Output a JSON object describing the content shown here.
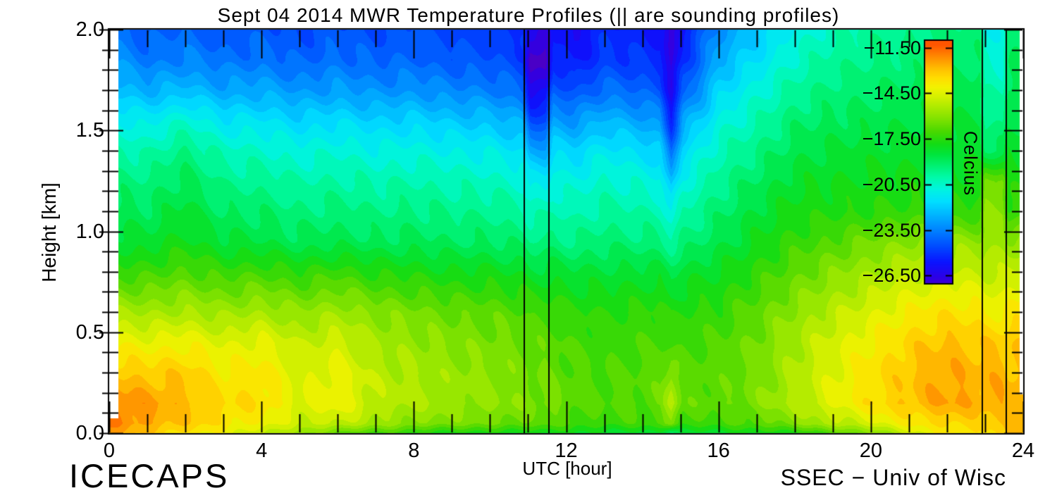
{
  "title": "Sept 04 2014 MWR Temperature Profiles (|| are sounding profiles)",
  "footer_left": "ICECAPS",
  "footer_right": "SSEC − Univ of Wisc",
  "chart_data": {
    "type": "heatmap",
    "title": "Sept 04 2014 MWR Temperature Profiles (|| are sounding profiles)",
    "xlabel": "UTC [hour]",
    "ylabel": "Height [km]",
    "xlim": [
      0,
      24
    ],
    "ylim": [
      0.0,
      2.0
    ],
    "x_major_ticks": [
      0,
      4,
      8,
      12,
      16,
      20,
      24
    ],
    "x_tick_labels": [
      "0",
      "4",
      "8",
      "12",
      "16",
      "20",
      "24"
    ],
    "x_minor_step": 1,
    "y_major_ticks": [
      2.0,
      1.5,
      1.0,
      0.5,
      0.0
    ],
    "y_tick_labels": [
      "2.0",
      "1.5",
      "1.0",
      "0.5",
      "0.0"
    ],
    "y_minor_step": 0.1,
    "contour_interval_c": 0.5,
    "sounding_lines_utc": [
      10.9,
      11.55,
      22.93,
      23.56
    ],
    "colorbar": {
      "title": "Celcius",
      "ticks": [
        -11.5,
        -14.5,
        -17.5,
        -20.5,
        -23.5,
        -26.5
      ],
      "tick_labels": [
        "−11.50",
        "−14.50",
        "−17.50",
        "−20.50",
        "−23.50",
        "−26.50"
      ],
      "bar_max": -11.05,
      "bar_min": -27.0
    },
    "colormap_stops": [
      [
        -27.6,
        "#5A00B4"
      ],
      [
        -26.6,
        "#2D00E6"
      ],
      [
        -25.6,
        "#0A14FF"
      ],
      [
        -24.6,
        "#0049FF"
      ],
      [
        -23.6,
        "#007DFF"
      ],
      [
        -22.6,
        "#00AFFF"
      ],
      [
        -21.6,
        "#00DFFF"
      ],
      [
        -20.8,
        "#00F4E0"
      ],
      [
        -20.0,
        "#00FAA8"
      ],
      [
        -19.2,
        "#00F06E"
      ],
      [
        -18.5,
        "#00E53C"
      ],
      [
        -17.8,
        "#14DC14"
      ],
      [
        -17.0,
        "#49D800"
      ],
      [
        -16.2,
        "#7EE200"
      ],
      [
        -15.4,
        "#ACEA00"
      ],
      [
        -14.7,
        "#D5F000"
      ],
      [
        -14.1,
        "#F2F200"
      ],
      [
        -13.5,
        "#FFDE00"
      ],
      [
        -12.9,
        "#FFC100"
      ],
      [
        -12.3,
        "#FF9A00"
      ],
      [
        -11.8,
        "#FF7800"
      ],
      [
        -11.3,
        "#FF5500"
      ]
    ],
    "times": [
      0,
      1,
      2,
      3,
      4,
      5,
      6,
      7,
      8,
      9,
      10,
      10.85,
      11.05,
      11.45,
      11.65,
      12.2,
      13,
      14,
      14.45,
      14.75,
      15.05,
      16,
      17,
      18,
      19,
      20,
      21,
      22,
      22.85,
      23.0,
      23.45,
      23.6,
      24
    ],
    "heights": [
      2.0,
      1.85,
      1.7,
      1.55,
      1.4,
      1.25,
      1.1,
      0.95,
      0.8,
      0.6,
      0.45,
      0.3,
      0.15,
      0.05,
      0.0
    ],
    "grid_celsius": [
      [
        -23.6,
        -24.3,
        -24.0,
        -24.4,
        -24.2,
        -24.6,
        -24.3,
        -24.6,
        -24.4,
        -24.7,
        -24.8,
        -25.1,
        -26.4,
        -26.4,
        -25.4,
        -26.1,
        -25.2,
        -25.4,
        -25.6,
        -27.1,
        -25.6,
        -23.2,
        -22.1,
        -20.9,
        -20.2,
        -19.8,
        -19.6,
        -19.4,
        -19.3,
        -20.9,
        -20.9,
        -19.3,
        -19.1
      ],
      [
        -23.0,
        -23.7,
        -23.4,
        -23.8,
        -23.7,
        -24.1,
        -23.8,
        -24.1,
        -24.0,
        -24.3,
        -24.4,
        -24.8,
        -27.4,
        -27.4,
        -25.1,
        -25.7,
        -24.8,
        -25.0,
        -25.2,
        -26.9,
        -25.2,
        -22.6,
        -21.5,
        -20.4,
        -19.8,
        -19.5,
        -19.3,
        -19.2,
        -19.1,
        -20.6,
        -20.6,
        -19.1,
        -18.9
      ],
      [
        -22.1,
        -22.6,
        -22.3,
        -22.8,
        -22.7,
        -23.1,
        -22.9,
        -23.2,
        -23.1,
        -23.4,
        -23.5,
        -24.0,
        -26.2,
        -26.2,
        -24.2,
        -24.5,
        -23.8,
        -24.1,
        -24.4,
        -26.3,
        -24.3,
        -21.8,
        -20.7,
        -19.8,
        -19.3,
        -19.1,
        -18.9,
        -18.8,
        -18.8,
        -20.1,
        -20.1,
        -18.8,
        -18.7
      ],
      [
        -20.9,
        -21.2,
        -20.5,
        -21.4,
        -21.4,
        -21.8,
        -21.6,
        -21.9,
        -21.8,
        -22.1,
        -22.2,
        -22.7,
        -24.6,
        -24.6,
        -22.9,
        -23.1,
        -22.4,
        -22.8,
        -23.1,
        -25.4,
        -22.9,
        -20.9,
        -20.1,
        -19.2,
        -18.9,
        -18.7,
        -18.6,
        -18.5,
        -18.5,
        -19.6,
        -19.6,
        -18.5,
        -18.4
      ],
      [
        -20.0,
        -20.1,
        -19.4,
        -20.3,
        -20.4,
        -20.8,
        -20.6,
        -20.9,
        -20.8,
        -21.0,
        -21.1,
        -21.5,
        -22.7,
        -22.7,
        -21.6,
        -21.8,
        -21.2,
        -21.6,
        -21.9,
        -24.1,
        -21.7,
        -20.2,
        -19.5,
        -18.7,
        -18.4,
        -18.3,
        -18.2,
        -18.1,
        -18.2,
        -18.9,
        -18.9,
        -18.2,
        -18.1
      ],
      [
        -19.3,
        -19.4,
        -18.8,
        -19.6,
        -19.7,
        -20.0,
        -19.9,
        -20.1,
        -20.0,
        -20.2,
        -20.3,
        -20.6,
        -21.2,
        -21.2,
        -20.7,
        -20.9,
        -20.4,
        -20.7,
        -20.9,
        -22.4,
        -20.8,
        -19.7,
        -18.9,
        -18.2,
        -18.0,
        -17.9,
        -17.8,
        -17.7,
        -17.8,
        -16.4,
        -16.4,
        -17.8,
        -17.7
      ],
      [
        -18.8,
        -18.9,
        -18.3,
        -19.0,
        -19.1,
        -19.4,
        -19.3,
        -19.5,
        -19.4,
        -19.6,
        -19.6,
        -19.9,
        -20.2,
        -20.2,
        -20.0,
        -20.2,
        -19.8,
        -20.0,
        -20.1,
        -20.9,
        -20.0,
        -19.2,
        -18.4,
        -17.8,
        -17.6,
        -17.5,
        -17.4,
        -17.3,
        -17.4,
        -15.9,
        -15.9,
        -17.4,
        -17.3
      ],
      [
        -18.2,
        -18.3,
        -17.8,
        -18.4,
        -18.5,
        -18.8,
        -18.7,
        -18.9,
        -18.8,
        -19.0,
        -19.0,
        -19.2,
        -19.4,
        -19.4,
        -19.3,
        -19.5,
        -19.2,
        -19.3,
        -19.4,
        -19.8,
        -19.4,
        -18.7,
        -18.0,
        -17.3,
        -16.9,
        -16.4,
        -16.0,
        -15.8,
        -15.9,
        -15.7,
        -15.7,
        -15.9,
        -15.7
      ],
      [
        -17.4,
        -17.2,
        -16.9,
        -17.3,
        -17.1,
        -17.5,
        -17.2,
        -17.6,
        -17.7,
        -17.9,
        -17.9,
        -18.1,
        -18.3,
        -18.3,
        -18.2,
        -18.4,
        -18.4,
        -18.3,
        -18.3,
        -18.7,
        -18.3,
        -18.0,
        -17.4,
        -16.7,
        -16.1,
        -15.6,
        -15.1,
        -14.9,
        -15.0,
        -15.1,
        -15.1,
        -15.0,
        -14.8
      ],
      [
        -15.4,
        -15.6,
        -15.4,
        -15.7,
        -15.5,
        -15.9,
        -15.6,
        -16.1,
        -16.3,
        -16.6,
        -16.7,
        -16.9,
        -17.1,
        -17.1,
        -17.2,
        -17.4,
        -17.5,
        -17.4,
        -17.3,
        -17.7,
        -17.5,
        -17.3,
        -16.7,
        -15.9,
        -15.2,
        -14.6,
        -14.0,
        -13.6,
        -13.8,
        -14.0,
        -14.0,
        -13.9,
        -13.7
      ],
      [
        -14.1,
        -14.3,
        -14.1,
        -14.6,
        -14.3,
        -15.1,
        -14.7,
        -15.5,
        -15.8,
        -16.1,
        -16.3,
        -16.5,
        -16.7,
        -16.7,
        -16.8,
        -17.1,
        -17.2,
        -17.1,
        -17.0,
        -17.3,
        -17.1,
        -17.0,
        -16.4,
        -15.5,
        -14.7,
        -14.0,
        -13.3,
        -12.9,
        -13.1,
        -13.1,
        -13.1,
        -13.1,
        -13.0
      ],
      [
        -13.0,
        -13.2,
        -13.1,
        -13.9,
        -13.8,
        -14.7,
        -14.2,
        -15.2,
        -15.5,
        -15.8,
        -16.0,
        -16.3,
        -16.5,
        -16.5,
        -16.6,
        -16.9,
        -17.0,
        -16.9,
        -16.7,
        -15.9,
        -16.8,
        -16.8,
        -16.3,
        -15.4,
        -14.5,
        -13.7,
        -13.0,
        -12.5,
        -12.8,
        -12.7,
        -12.7,
        -13.0,
        -12.8
      ],
      [
        -11.9,
        -12.3,
        -12.8,
        -13.4,
        -13.6,
        -14.5,
        -14.1,
        -15.1,
        -15.4,
        -15.7,
        -15.9,
        -16.1,
        -16.3,
        -16.3,
        -16.4,
        -16.7,
        -16.9,
        -16.8,
        -16.6,
        -14.9,
        -16.7,
        -16.7,
        -16.2,
        -15.3,
        -14.4,
        -13.6,
        -12.9,
        -12.4,
        -12.7,
        -12.6,
        -12.6,
        -12.7,
        -12.4
      ],
      [
        -11.9,
        -12.5,
        -13.1,
        -13.7,
        -14.1,
        -15.0,
        -14.9,
        -15.7,
        -16.0,
        -16.3,
        -16.4,
        -16.6,
        -16.7,
        -16.7,
        -16.8,
        -17.1,
        -17.2,
        -17.2,
        -17.1,
        -16.1,
        -17.2,
        -17.2,
        -16.8,
        -16.1,
        -15.3,
        -14.6,
        -13.9,
        -13.3,
        -13.4,
        -13.2,
        -13.2,
        -13.2,
        -12.5
      ],
      [
        -12.6,
        -13.1,
        -13.7,
        -14.4,
        -14.9,
        -15.9,
        -16.6,
        -17.2,
        -17.6,
        -17.8,
        -17.9,
        -17.9,
        -17.9,
        -17.9,
        -18.0,
        -18.1,
        -18.2,
        -18.3,
        -18.3,
        -19.6,
        -18.3,
        -18.2,
        -18.0,
        -17.7,
        -17.1,
        -16.1,
        -14.9,
        -13.9,
        -13.6,
        -13.4,
        -13.4,
        -13.2,
        -12.9
      ]
    ]
  }
}
